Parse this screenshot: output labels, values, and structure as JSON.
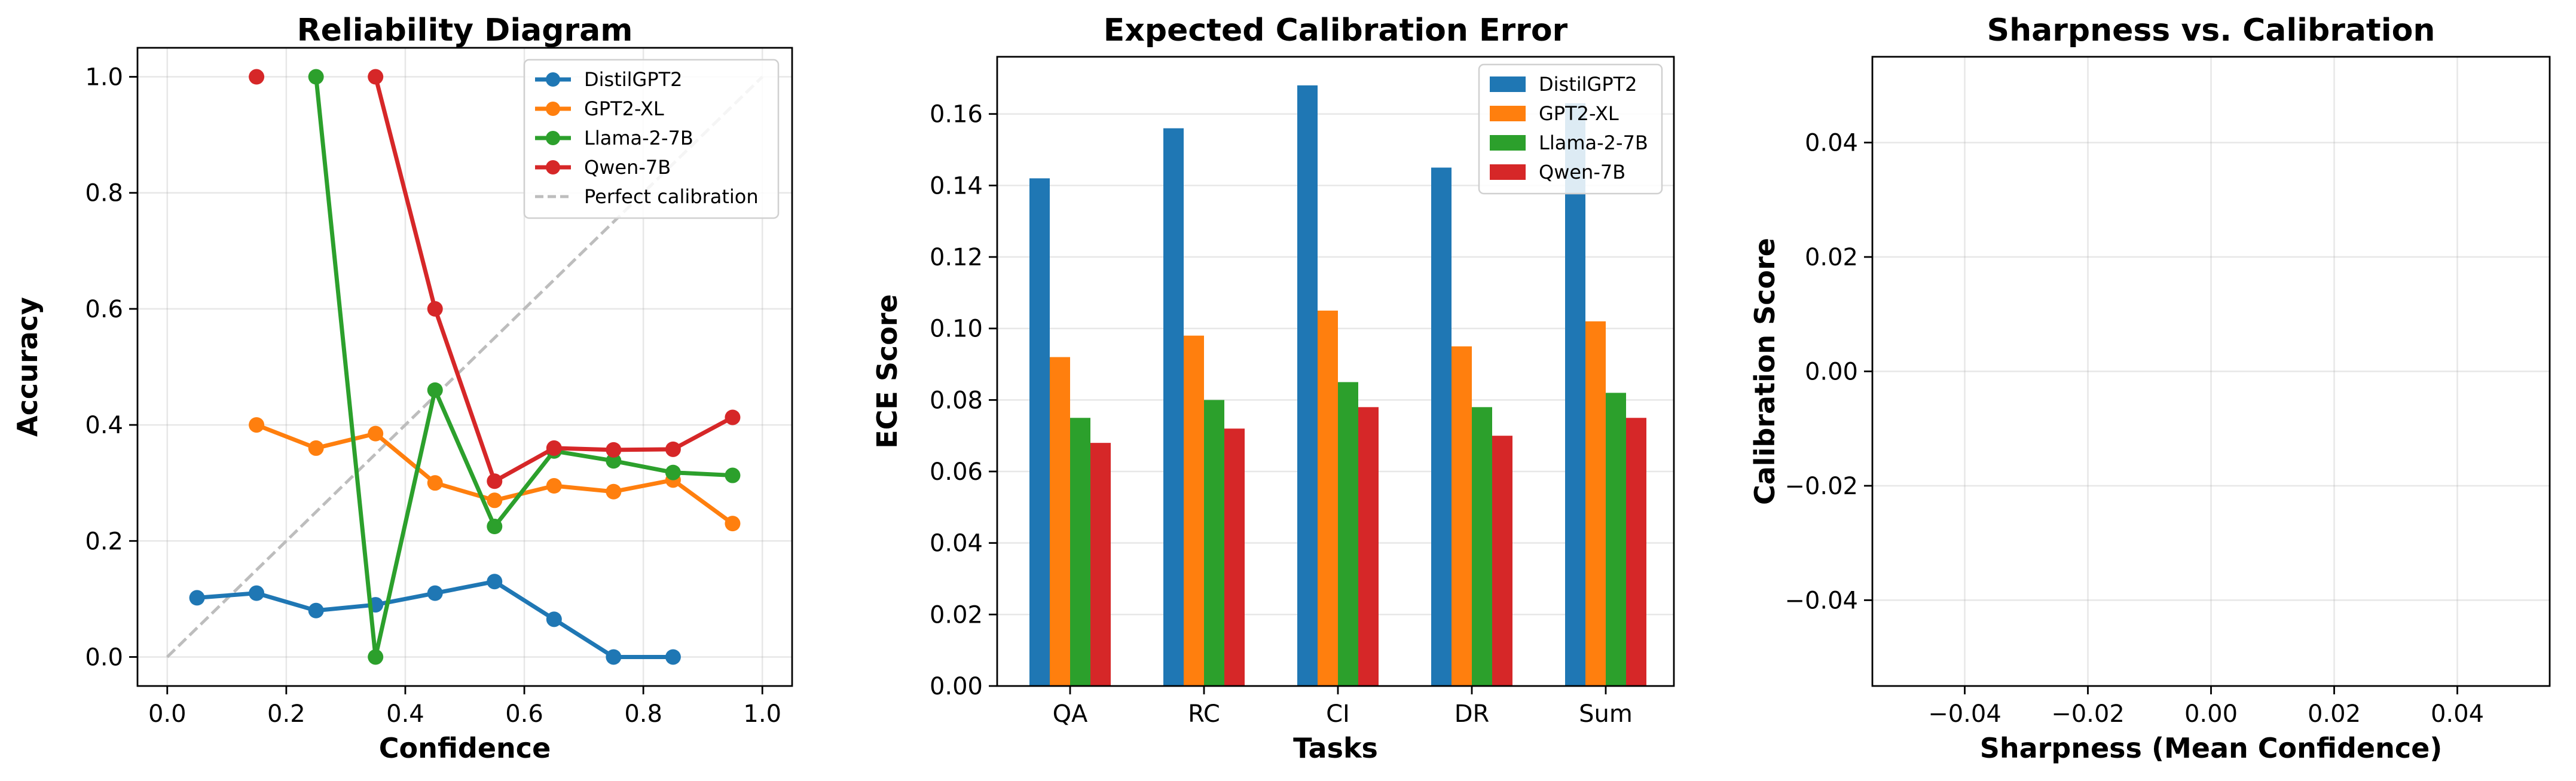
{
  "chart_data": [
    {
      "type": "line",
      "title": "Reliability Diagram",
      "xlabel": "Confidence",
      "ylabel": "Accuracy",
      "xlim": [
        -0.05,
        1.05
      ],
      "ylim": [
        -0.05,
        1.05
      ],
      "xticks": [
        "0.0",
        "0.2",
        "0.4",
        "0.6",
        "0.8",
        "1.0"
      ],
      "yticks": [
        "0.0",
        "0.2",
        "0.4",
        "0.6",
        "0.8",
        "1.0"
      ],
      "grid": true,
      "legend_position": "top-right",
      "series": [
        {
          "name": "DistilGPT2",
          "color": "#1f77b4",
          "x": [
            0.05,
            0.15,
            0.25,
            0.35,
            0.45,
            0.55,
            0.65,
            0.75,
            0.85
          ],
          "y": [
            0.102,
            0.11,
            0.08,
            0.09,
            0.11,
            0.13,
            0.065,
            0.0,
            0.0
          ]
        },
        {
          "name": "GPT2-XL",
          "color": "#ff7f0e",
          "x": [
            0.15,
            0.25,
            0.35,
            0.45,
            0.55,
            0.65,
            0.75,
            0.85,
            0.95
          ],
          "y": [
            0.4,
            0.36,
            0.385,
            0.3,
            0.27,
            0.295,
            0.285,
            0.305,
            0.23
          ]
        },
        {
          "name": "Llama-2-7B",
          "color": "#2ca02c",
          "x": [
            0.25,
            0.35,
            0.45,
            0.55,
            0.65,
            0.75,
            0.85,
            0.95
          ],
          "y": [
            1.0,
            0.0,
            0.46,
            0.225,
            0.355,
            0.338,
            0.318,
            0.313
          ]
        },
        {
          "name": "Qwen-7B",
          "color": "#d62728",
          "x": [
            0.15,
            0.35,
            0.45,
            0.55,
            0.65,
            0.75,
            0.85,
            0.95
          ],
          "y": [
            1.0,
            1.0,
            0.6,
            0.303,
            0.36,
            0.357,
            0.358,
            0.413
          ],
          "segments_break_after_index": 0
        }
      ],
      "reference_line": {
        "name": "Perfect calibration",
        "color": "#bdbdbd",
        "x": [
          0,
          1
        ],
        "y": [
          0,
          1
        ]
      }
    },
    {
      "type": "bar",
      "title": "Expected Calibration Error",
      "xlabel": "Tasks",
      "ylabel": "ECE Score",
      "categories": [
        "QA",
        "RC",
        "CI",
        "DR",
        "Sum"
      ],
      "ylim": [
        0,
        0.176
      ],
      "yticks": [
        "0.00",
        "0.02",
        "0.04",
        "0.06",
        "0.08",
        "0.10",
        "0.12",
        "0.14",
        "0.16"
      ],
      "grid": true,
      "legend_position": "top-right",
      "series": [
        {
          "name": "DistilGPT2",
          "color": "#1f77b4",
          "values": [
            0.142,
            0.156,
            0.168,
            0.145,
            0.163
          ]
        },
        {
          "name": "GPT2-XL",
          "color": "#ff7f0e",
          "values": [
            0.092,
            0.098,
            0.105,
            0.095,
            0.102
          ]
        },
        {
          "name": "Llama-2-7B",
          "color": "#2ca02c",
          "values": [
            0.075,
            0.08,
            0.085,
            0.078,
            0.082
          ]
        },
        {
          "name": "Qwen-7B",
          "color": "#d62728",
          "values": [
            0.068,
            0.072,
            0.078,
            0.07,
            0.075
          ]
        }
      ]
    },
    {
      "type": "scatter",
      "title": "Sharpness vs. Calibration",
      "xlabel": "Sharpness (Mean Confidence)",
      "ylabel": "Calibration Score",
      "xlim": [
        -0.055,
        0.055
      ],
      "ylim": [
        -0.055,
        0.055
      ],
      "xticks": [
        "−0.04",
        "−0.02",
        "0.00",
        "0.02",
        "0.04"
      ],
      "yticks": [
        "−0.04",
        "−0.02",
        "0.00",
        "0.02",
        "0.04"
      ],
      "grid": true,
      "series": []
    }
  ]
}
